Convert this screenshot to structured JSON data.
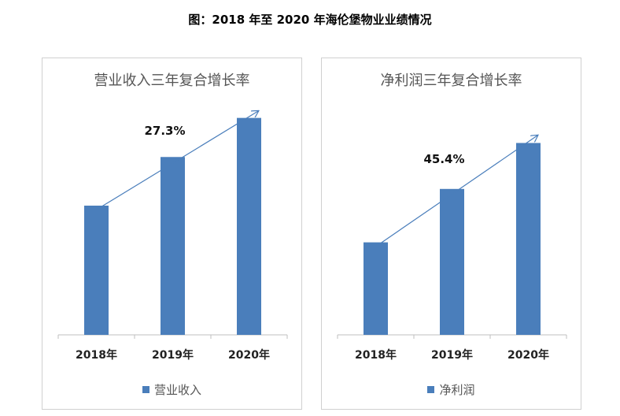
{
  "title": "图：2018 年至 2020 年海伦堡物业业绩情况",
  "colors": {
    "bar": "#4a7ebb",
    "axis": "#bfbfbf",
    "trend": "#4a7ebb"
  },
  "chart_data": [
    {
      "type": "bar",
      "title": "营业收入三年复合增长率",
      "categories": [
        "2018年",
        "2019年",
        "2020年"
      ],
      "series": [
        {
          "name": "营业收入",
          "values": [
            4.33,
            5.96,
            7.27
          ]
        }
      ],
      "annotation": "27.3%",
      "ylim": [
        0,
        8
      ],
      "grid": false,
      "legend": "bottom"
    },
    {
      "type": "bar",
      "title": "净利润三年复合增长率",
      "categories": [
        "2018年",
        "2019年",
        "2020年"
      ],
      "series": [
        {
          "name": "净利润",
          "values": [
            0.31,
            0.489,
            0.643
          ]
        }
      ],
      "annotation": "45.4%",
      "ylim": [
        0,
        0.8
      ],
      "grid": false,
      "legend": "bottom"
    }
  ]
}
